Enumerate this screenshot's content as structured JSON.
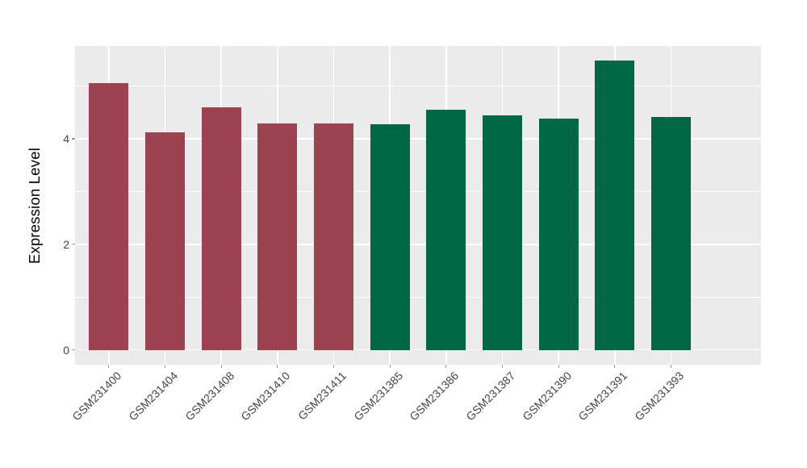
{
  "chart_data": {
    "type": "bar",
    "title": "",
    "xlabel": "",
    "ylabel": "Expression Level",
    "categories": [
      "GSM231400",
      "GSM231404",
      "GSM231408",
      "GSM231410",
      "GSM231411",
      "GSM231385",
      "GSM231386",
      "GSM231387",
      "GSM231390",
      "GSM231391",
      "GSM231393"
    ],
    "values": [
      5.06,
      4.12,
      4.6,
      4.29,
      4.29,
      4.27,
      4.55,
      4.44,
      4.39,
      5.48,
      4.42
    ],
    "bar_groups": [
      "maroon",
      "maroon",
      "maroon",
      "maroon",
      "maroon",
      "green",
      "green",
      "green",
      "green",
      "green",
      "green"
    ],
    "group_colors": {
      "maroon": "#9C4351",
      "green": "#006745"
    },
    "y_ticks": [
      {
        "value": 0,
        "label": "0"
      },
      {
        "value": 2,
        "label": "2"
      },
      {
        "value": 4,
        "label": "4"
      }
    ],
    "y_minor_values": [
      1,
      3,
      5
    ],
    "ylim": [
      -0.28,
      5.76
    ],
    "bar_width_fraction": 0.7,
    "x_label_rotation_deg": 45,
    "legend_position": "none",
    "grid": "horizontal major+minor, vertical major at category centers",
    "colors": {
      "figure_background": "#FFFFFF",
      "panel_background": "#EBEBEB",
      "gridline": "#FFFFFF",
      "tick_mark": "#999999",
      "axis_text": "#454545",
      "axis_title": "#000000"
    }
  }
}
